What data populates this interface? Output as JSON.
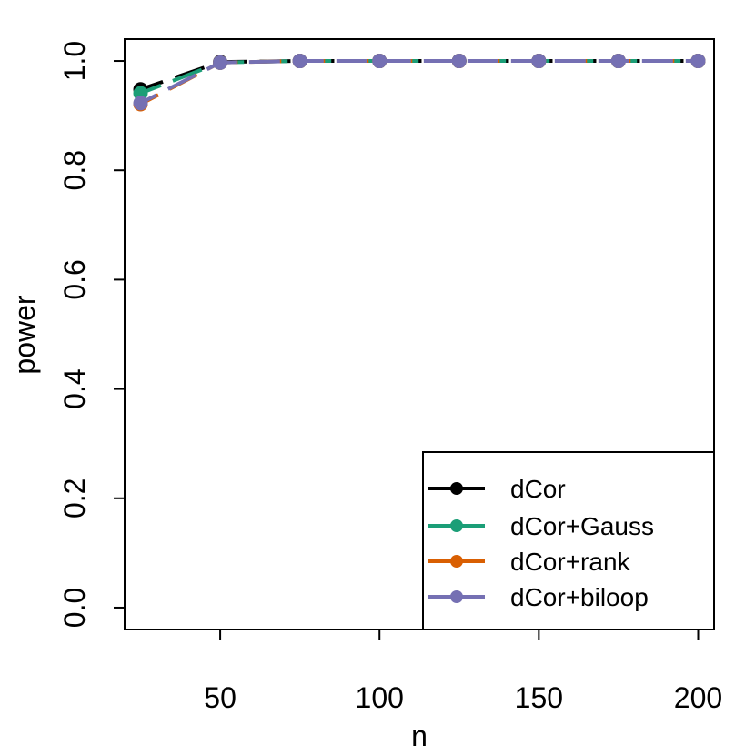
{
  "chart_data": {
    "type": "line",
    "title": "",
    "xlabel": "n",
    "ylabel": "power",
    "xlim": [
      20,
      205
    ],
    "ylim": [
      -0.04,
      1.04
    ],
    "x_ticks": [
      50,
      100,
      150,
      200
    ],
    "y_ticks": [
      0.0,
      0.2,
      0.4,
      0.6,
      0.8,
      1.0
    ],
    "x_tick_labels": [
      "50",
      "100",
      "150",
      "200"
    ],
    "y_tick_labels": [
      "0.0",
      "0.2",
      "0.4",
      "0.6",
      "0.8",
      "1.0"
    ],
    "grid": false,
    "legend_position": "bottom-right",
    "x": [
      25,
      50,
      75,
      100,
      125,
      150,
      175,
      200
    ],
    "series": [
      {
        "name": "dCor",
        "color": "#000000",
        "values": [
          0.948,
          0.998,
          1.0,
          1.0,
          1.0,
          1.0,
          1.0,
          1.0
        ]
      },
      {
        "name": "dCor+Gauss",
        "color": "#1b9e77",
        "values": [
          0.941,
          0.997,
          1.0,
          1.0,
          1.0,
          1.0,
          1.0,
          1.0
        ]
      },
      {
        "name": "dCor+rank",
        "color": "#d95f02",
        "values": [
          0.921,
          0.997,
          1.0,
          1.0,
          1.0,
          1.0,
          1.0,
          1.0
        ]
      },
      {
        "name": "dCor+biloop",
        "color": "#7570b3",
        "values": [
          0.923,
          0.997,
          1.0,
          1.0,
          1.0,
          1.0,
          1.0,
          1.0
        ]
      }
    ]
  }
}
